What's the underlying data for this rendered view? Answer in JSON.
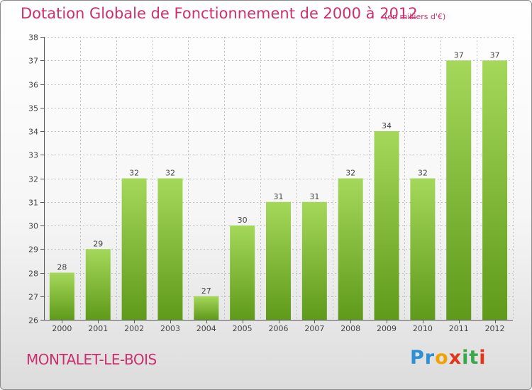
{
  "chart_data": {
    "type": "bar",
    "title": "Dotation Globale de Fonctionnement de 2000 à 2012",
    "unit": "(en milliers d'€)",
    "categories": [
      "2000",
      "2001",
      "2002",
      "2003",
      "2004",
      "2005",
      "2006",
      "2007",
      "2008",
      "2009",
      "2010",
      "2011",
      "2012"
    ],
    "values": [
      28,
      29,
      32,
      32,
      27,
      30,
      31,
      31,
      32,
      34,
      32,
      37,
      37
    ],
    "ylim": [
      26,
      38
    ],
    "yticks": [
      26,
      27,
      28,
      29,
      30,
      31,
      32,
      33,
      34,
      35,
      36,
      37,
      38
    ],
    "xlabel": "",
    "ylabel": "",
    "grid": true,
    "bar_color_top": "#a5d85a",
    "bar_color_bottom": "#5f9a1a"
  },
  "footer": {
    "place": "MONTALET-LE-BOIS",
    "logo": [
      "P",
      "r",
      "o",
      "x",
      "i",
      "t",
      "i"
    ],
    "logo_colors": [
      "#2d8fd6",
      "#2d8fd6",
      "#f0a300",
      "#e2361a",
      "#3aa84a",
      "#3aa84a",
      "#e2361a"
    ]
  },
  "colors": {
    "title": "#cc2f6e",
    "grid": "#bfbfbf",
    "axis": "#555555"
  }
}
